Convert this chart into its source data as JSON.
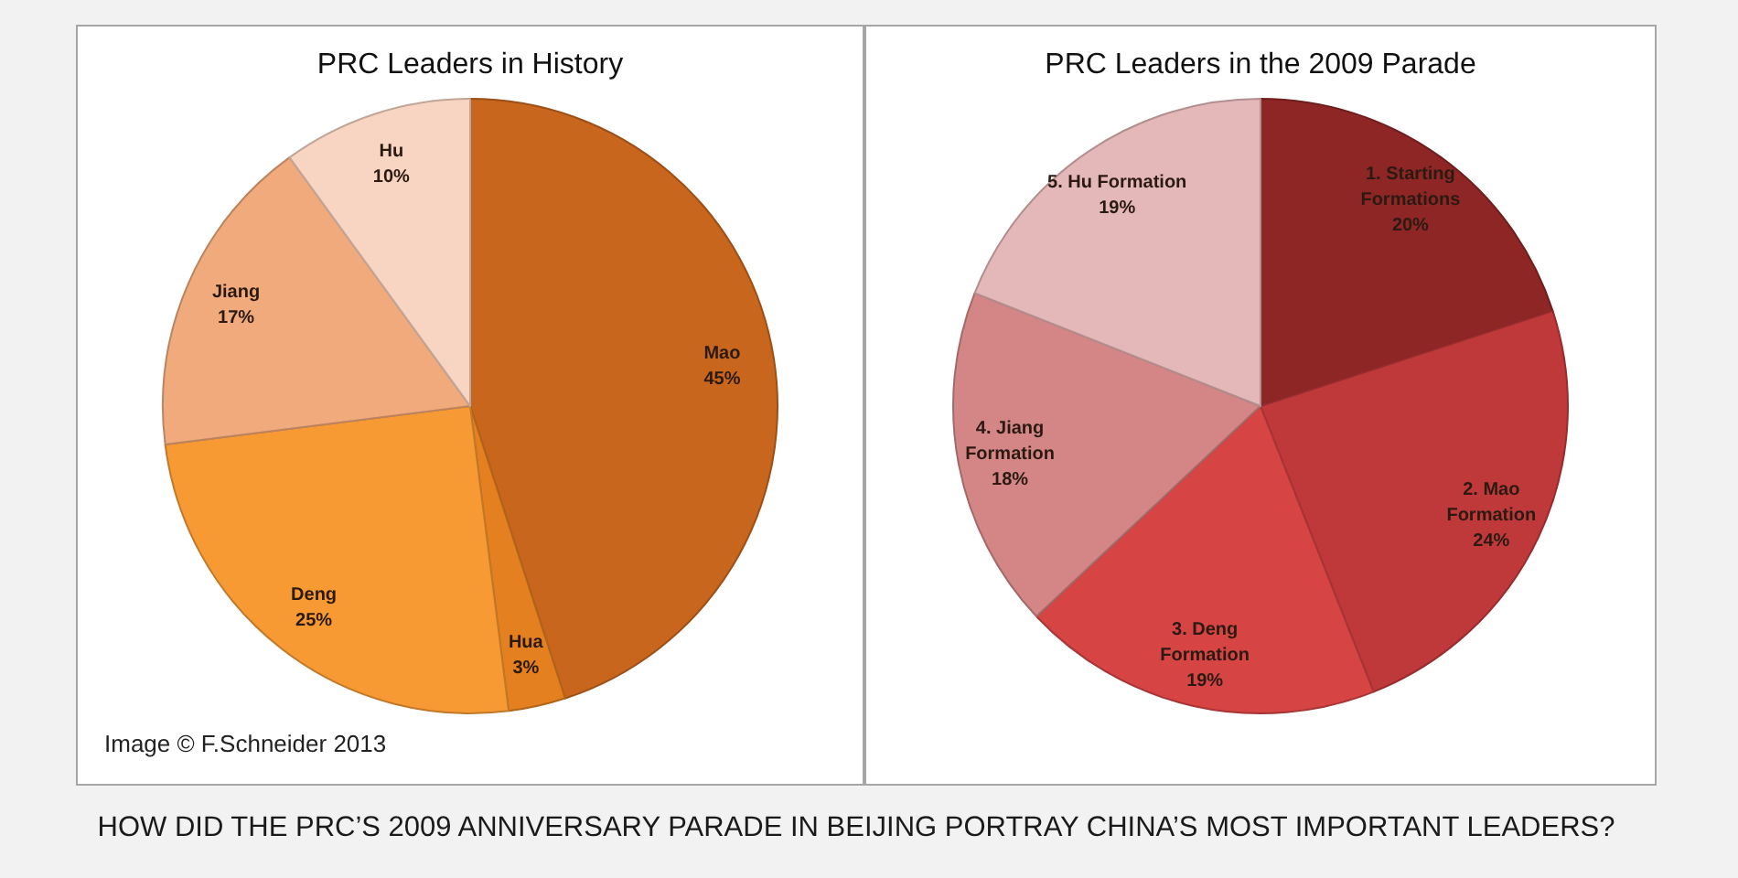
{
  "chart_data": [
    {
      "type": "pie",
      "title": "PRC Leaders in History",
      "categories": [
        "Mao",
        "Hua",
        "Deng",
        "Jiang",
        "Hu"
      ],
      "values": [
        45,
        3,
        25,
        17,
        10
      ],
      "value_labels": [
        "45%",
        "3%",
        "25%",
        "17%",
        "10%"
      ],
      "colors": [
        "#c8661e",
        "#e4801f",
        "#f89a34",
        "#f0aa7c",
        "#f8d5c3"
      ],
      "annotations": [
        "Image © F.Schneider 2013"
      ]
    },
    {
      "type": "pie",
      "title": "PRC Leaders in the 2009 Parade",
      "categories": [
        "1. Starting Formations",
        "2. Mao Formation",
        "3. Deng Formation",
        "4. Jiang Formation",
        "5. Hu Formation"
      ],
      "values": [
        20,
        24,
        19,
        18,
        19
      ],
      "value_labels": [
        "20%",
        "24%",
        "19%",
        "18%",
        "19%"
      ],
      "colors": [
        "#8f2626",
        "#c0393a",
        "#d64444",
        "#d48686",
        "#e4b8b8"
      ],
      "annotations": [
        "HOW DID THE PRC’S 2009 ANNIVERSARY PARADE IN BEIJING PORTRAY CHINA’S MOST IMPORTANT LEADERS?"
      ]
    }
  ]
}
